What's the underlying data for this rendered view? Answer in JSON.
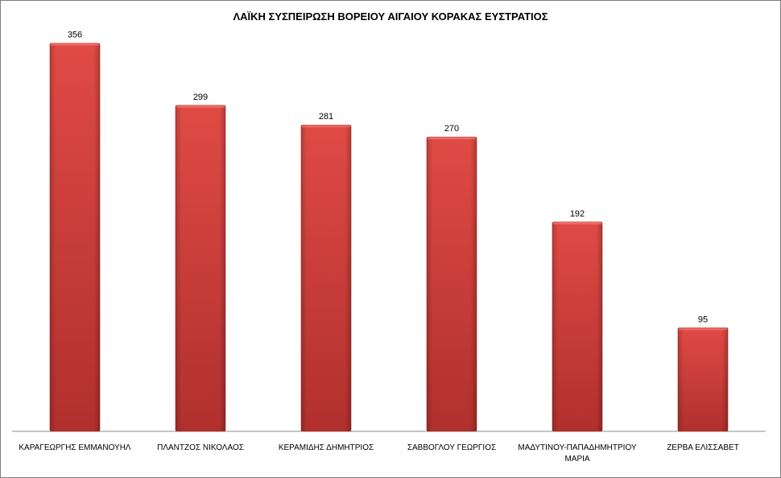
{
  "chart_data": {
    "type": "bar",
    "title": "ΛΑΪΚΗ ΣΥΣΠΕΙΡΩΣΗ ΒΟΡΕΙΟΥ ΑΙΓΑΙΟΥ ΚΟΡΑΚΑΣ ΕΥΣΤΡΑΤΙΟΣ",
    "categories": [
      "ΚΑΡΑΓΕΩΡΓΗΣ ΕΜΜΑΝΟΥΗΛ",
      "ΠΛΑΝΤΖΟΣ ΝΙΚΟΛΑΟΣ",
      "ΚΕΡΑΜΙΔΗΣ ΔΗΜΗΤΡΙΟΣ",
      "ΣΑΒΒΟΓΛΟΥ ΓΕΩΡΓΙΟΣ",
      "ΜΑΔΥΤΙΝΟΥ-ΠΑΠΑΔΗΜΗΤΡΙΟΥ ΜΑΡΙΑ",
      "ΖΕΡΒΑ ΕΛΙΣΣΑΒΕΤ"
    ],
    "category_lines": [
      [
        "ΚΑΡΑΓΕΩΡΓΗΣ ΕΜΜΑΝΟΥΗΛ"
      ],
      [
        "ΠΛΑΝΤΖΟΣ ΝΙΚΟΛΑΟΣ"
      ],
      [
        "ΚΕΡΑΜΙΔΗΣ ΔΗΜΗΤΡΙΟΣ"
      ],
      [
        "ΣΑΒΒΟΓΛΟΥ ΓΕΩΡΓΙΟΣ"
      ],
      [
        "ΜΑΔΥΤΙΝΟΥ-ΠΑΠΑΔΗΜΗΤΡΙΟΥ",
        "ΜΑΡΙΑ"
      ],
      [
        "ΖΕΡΒΑ ΕΛΙΣΣΑΒΕΤ"
      ]
    ],
    "values": [
      356,
      299,
      281,
      270,
      192,
      95
    ],
    "ylim": [
      0,
      400
    ],
    "grid": false,
    "legend": "none",
    "data_labels": true,
    "bar_color": "#d9403c"
  }
}
